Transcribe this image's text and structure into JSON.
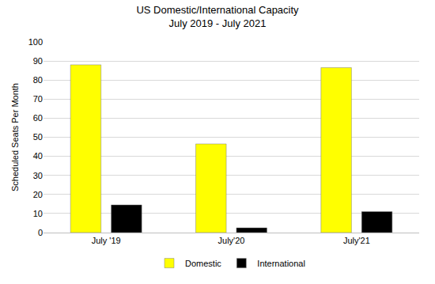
{
  "chart_data": {
    "type": "bar",
    "title": "US Domestic/International Capacity",
    "subtitle": "July 2019 - July 2021",
    "y_label": "Scheduled Seats Per Month",
    "categories": [
      "July '19",
      "July'20",
      "July'21"
    ],
    "series": [
      {
        "name": "Domestic",
        "color": "#ffff00",
        "values": [
          88,
          46.5,
          86.5
        ]
      },
      {
        "name": "International",
        "color": "#000000",
        "values": [
          14.5,
          2.5,
          11
        ]
      }
    ],
    "ylim": [
      0,
      100
    ],
    "yticks": [
      0,
      10,
      20,
      30,
      40,
      50,
      60,
      70,
      80,
      90,
      100
    ],
    "grid": true,
    "legend": "bottom"
  }
}
